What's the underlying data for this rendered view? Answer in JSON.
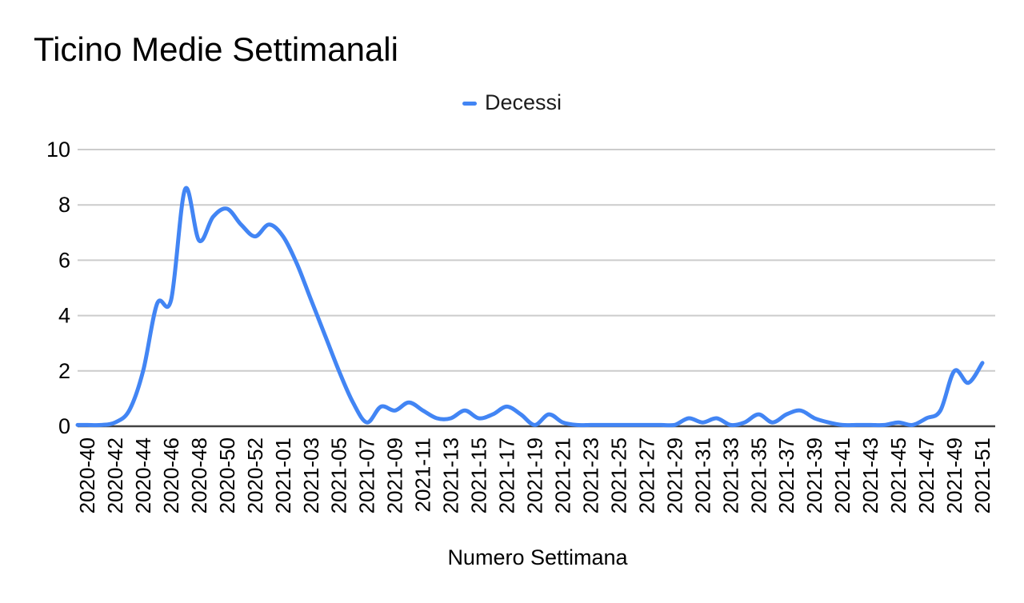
{
  "header": {
    "title": "Ticino Medie Settimanali"
  },
  "legend": {
    "label": "Decessi"
  },
  "axes": {
    "x_title": "Numero Settimana"
  },
  "colors": {
    "series_blue": "#4285f4",
    "grid": "#cccccc",
    "axis_line": "#424242",
    "tick_text": "#000000"
  },
  "chart_data": {
    "type": "line",
    "smooth": true,
    "title": "Ticino Medie Settimanali",
    "xlabel": "Numero Settimana",
    "ylabel": "",
    "ylim": [
      0,
      10
    ],
    "yticks": [
      0,
      2,
      4,
      6,
      8,
      10
    ],
    "grid": true,
    "legend_position": "top",
    "x_tick_label_every": 2,
    "categories": [
      "2020-40",
      "2020-41",
      "2020-42",
      "2020-43",
      "2020-44",
      "2020-45",
      "2020-46",
      "2020-47",
      "2020-48",
      "2020-49",
      "2020-50",
      "2020-51",
      "2020-52",
      "2020-53",
      "2021-01",
      "2021-02",
      "2021-03",
      "2021-04",
      "2021-05",
      "2021-06",
      "2021-07",
      "2021-08",
      "2021-09",
      "2021-10",
      "2021-11",
      "2021-12",
      "2021-13",
      "2021-14",
      "2021-15",
      "2021-16",
      "2021-17",
      "2021-18",
      "2021-19",
      "2021-20",
      "2021-21",
      "2021-22",
      "2021-23",
      "2021-24",
      "2021-25",
      "2021-26",
      "2021-27",
      "2021-28",
      "2021-29",
      "2021-30",
      "2021-31",
      "2021-32",
      "2021-33",
      "2021-34",
      "2021-35",
      "2021-36",
      "2021-37",
      "2021-38",
      "2021-39",
      "2021-40",
      "2021-41",
      "2021-42",
      "2021-43",
      "2021-44",
      "2021-45",
      "2021-46",
      "2021-47",
      "2021-48",
      "2021-49",
      "2021-50",
      "2021-51"
    ],
    "series": [
      {
        "name": "Decessi",
        "color": "#4285f4",
        "values": [
          0,
          0,
          0.14,
          0.57,
          2,
          4.43,
          4.57,
          8.57,
          6.71,
          7.57,
          7.86,
          7.29,
          6.86,
          7.29,
          6.86,
          5.86,
          4.57,
          3.29,
          2,
          0.86,
          0.14,
          0.71,
          0.57,
          0.86,
          0.57,
          0.29,
          0.29,
          0.57,
          0.29,
          0.43,
          0.71,
          0.43,
          0,
          0.43,
          0.14,
          0,
          0,
          0,
          0,
          0,
          0,
          0,
          0,
          0.29,
          0.14,
          0.29,
          0,
          0.14,
          0.43,
          0.14,
          0.43,
          0.57,
          0.29,
          0.14,
          0,
          0,
          0,
          0,
          0.14,
          0,
          0.29,
          0.57,
          2,
          1.57,
          2.29
        ]
      }
    ]
  }
}
